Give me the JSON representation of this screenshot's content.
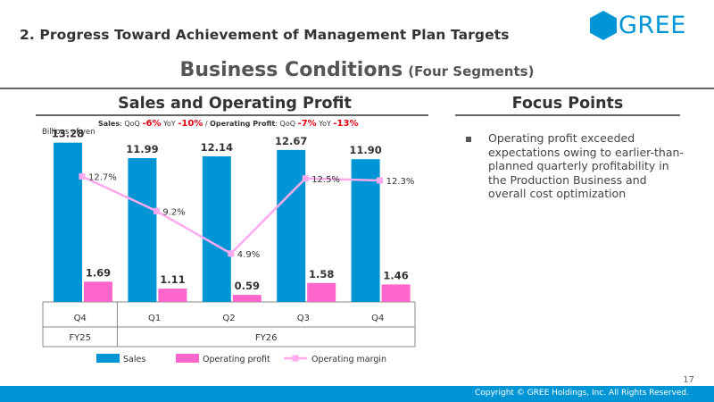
{
  "header": {
    "section_title": "2. Progress Toward Achievement of Management Plan Targets",
    "logo_text": "GREE",
    "brand_color": "#0096d6"
  },
  "main_title": {
    "title": "Business Conditions",
    "subtitle": "(Four Segments)"
  },
  "left_panel": {
    "heading": "Sales and Operating Profit",
    "delta": {
      "sales_label": "Sales",
      "qoq_label": "QoQ",
      "sales_qoq": "-6%",
      "yoy_label": "YoY",
      "sales_yoy": "-10%",
      "separator": "/",
      "op_label": "Operating Profit",
      "op_qoq": "-7%",
      "op_yoy": "-13%"
    },
    "unit_label": "Billions of yen"
  },
  "right_panel": {
    "heading": "Focus Points",
    "items": [
      "Operating profit exceeded expectations owing to earlier-than-planned quarterly profitability in the Production Business and overall cost optimization"
    ]
  },
  "chart_data": {
    "type": "bar",
    "categories": [
      "Q4",
      "Q1",
      "Q2",
      "Q3",
      "Q4"
    ],
    "fiscal_groups": [
      {
        "label": "FY25",
        "span": 1
      },
      {
        "label": "FY26",
        "span": 4
      }
    ],
    "series": [
      {
        "name": "Sales",
        "type": "bar",
        "color": "#0096d6",
        "values": [
          13.28,
          11.99,
          12.14,
          12.67,
          11.9
        ],
        "labels": [
          "13.28",
          "11.99",
          "12.14",
          "12.67",
          "11.90"
        ]
      },
      {
        "name": "Operating profit",
        "type": "bar",
        "color": "#ff66cc",
        "values": [
          1.69,
          1.11,
          0.59,
          1.58,
          1.46
        ],
        "labels": [
          "1.69",
          "1.11",
          "0.59",
          "1.58",
          "1.46"
        ]
      },
      {
        "name": "Operating margin",
        "type": "line",
        "color": "#ffaaee",
        "values": [
          12.7,
          9.2,
          4.9,
          12.5,
          12.3
        ],
        "labels": [
          "12.7%",
          "9.2%",
          "4.9%",
          "12.5%",
          "12.3%"
        ]
      }
    ],
    "ylim": [
      0,
      14
    ],
    "margin_ylim": [
      0,
      17
    ],
    "grid": false,
    "legend_position": "bottom"
  },
  "footer": {
    "page_number": "17",
    "copyright": "Copyright © GREE Holdings, Inc. All Rights Reserved."
  }
}
